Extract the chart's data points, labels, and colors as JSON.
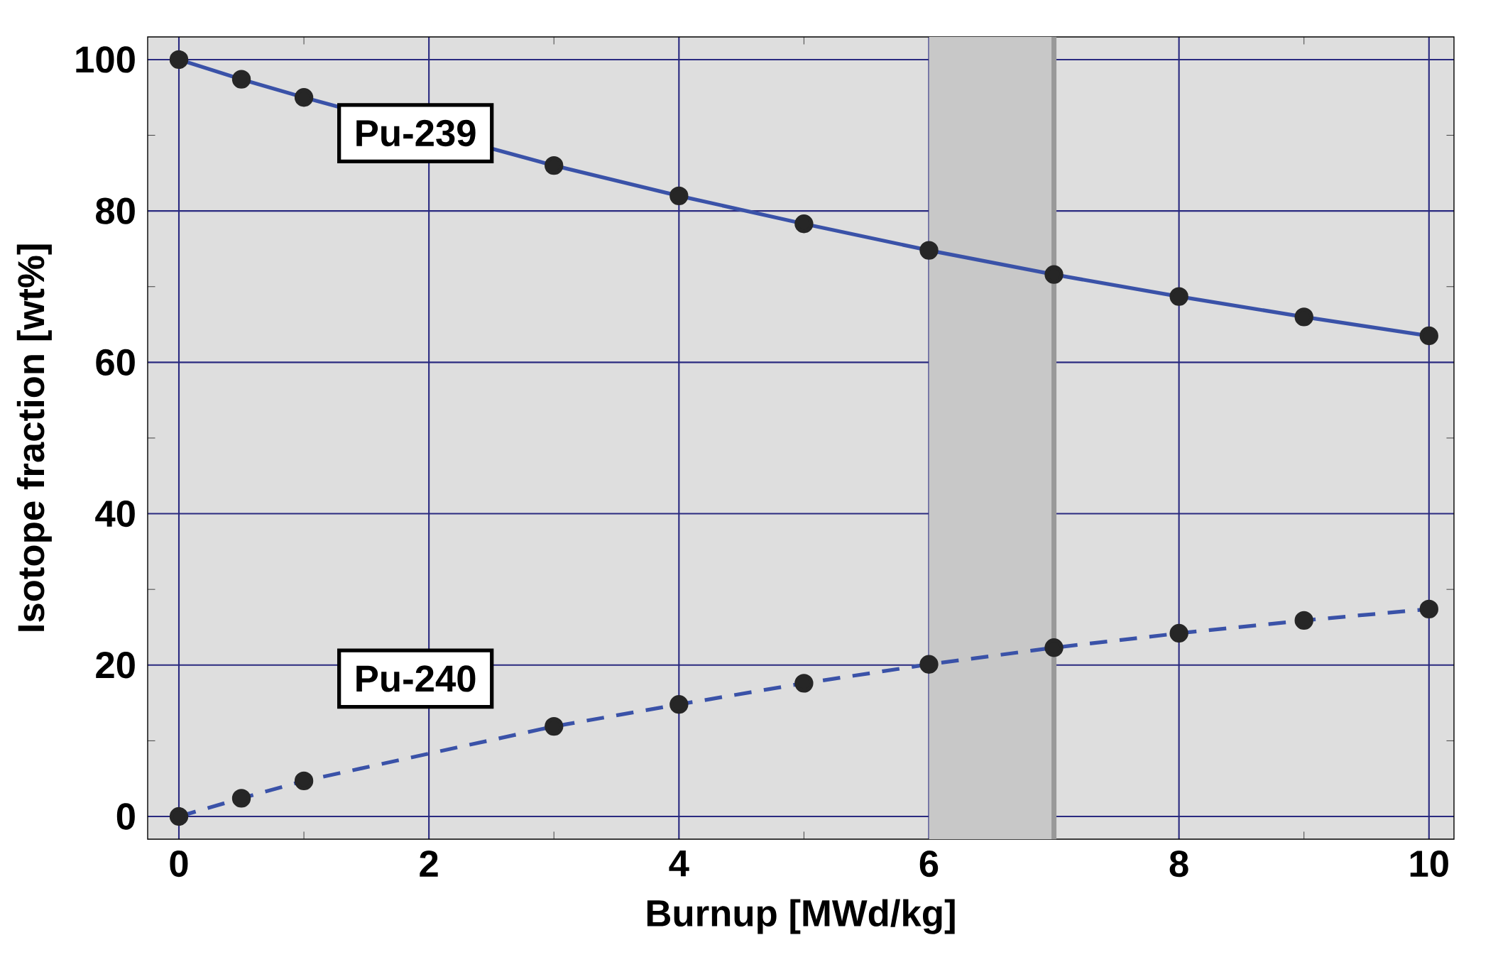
{
  "chart_data": {
    "type": "line",
    "xlabel": "Burnup [MWd/kg]",
    "ylabel": "Isotope fraction [wt%]",
    "xlim": [
      -0.25,
      10.2
    ],
    "ylim": [
      -3,
      103
    ],
    "xticks": [
      0,
      2,
      4,
      6,
      8,
      10
    ],
    "yticks": [
      0,
      20,
      40,
      60,
      80,
      100
    ],
    "grid": true,
    "legend": false,
    "marker": "circle",
    "bands": [
      {
        "axis": "x",
        "from": 6,
        "to": 7,
        "color": "#c8c8c8"
      }
    ],
    "ref_lines": [
      {
        "axis": "x",
        "value": 7,
        "color": "#999999",
        "line_style": "solid"
      }
    ],
    "series": [
      {
        "name": "Pu-239",
        "color": "#3a52a8",
        "line_style": "solid",
        "x": [
          0,
          0.5,
          1,
          3,
          4,
          5,
          6,
          7,
          8,
          9,
          10
        ],
        "values": [
          100,
          97.4,
          95.0,
          86.0,
          82.0,
          78.3,
          74.8,
          71.6,
          68.7,
          66.0,
          63.5
        ]
      },
      {
        "name": "Pu-240",
        "color": "#3a52a8",
        "line_style": "dashed",
        "x": [
          0,
          0.5,
          1,
          3,
          4,
          5,
          6,
          7,
          8,
          9,
          10
        ],
        "values": [
          0,
          2.4,
          4.7,
          11.9,
          14.8,
          17.6,
          20.1,
          22.3,
          24.2,
          25.9,
          27.4
        ]
      }
    ]
  }
}
